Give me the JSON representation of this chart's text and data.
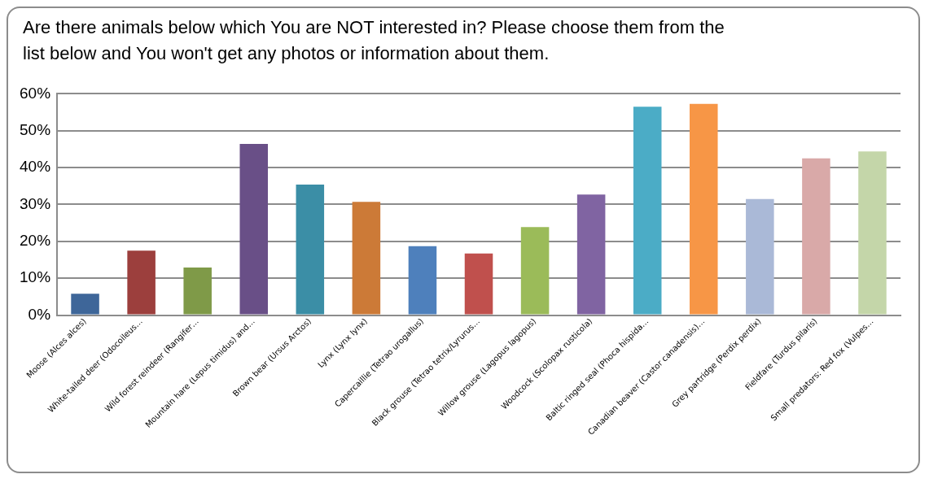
{
  "chart_data": {
    "type": "bar",
    "title": "Are there animals below which You are NOT interested in? Please choose them from the list below and You won't get any photos or information about them.",
    "categories": [
      "Moose (Alces alces)",
      "White-tailed deer (Odocoileus…",
      "Wild forest reindeer (Rangifer…",
      "Mountain hare (Lepus timidus) and…",
      "Brown bear (Ursus Arctos)",
      "Lynx (Lynx lynx)",
      "Capercaillie (Tetrao urogallus)",
      "Black grouse (Tetrao tetrix/Lyrurus…",
      "Willow grouse (Lagopus lagopus)",
      "Woodcock (Scolopax rusticola)",
      "Baltic ringed seal (Phoca hispida…",
      "Canadian beaver (Castor canadensis)…",
      "Grey partridge (Perdix perdix)",
      "Fieldfare (Turdus pilaris)",
      "Small predators: Red fox (Vulpes…"
    ],
    "values": [
      5.8,
      17.5,
      12.9,
      46.4,
      35.4,
      30.7,
      18.7,
      16.7,
      23.9,
      32.7,
      56.5,
      57.3,
      31.5,
      42.5,
      44.4
    ],
    "colors": [
      "#3e6699",
      "#9c3f3d",
      "#7f9a48",
      "#694f87",
      "#3b8ea6",
      "#cc7a37",
      "#4e80bc",
      "#c0504d",
      "#9bbb59",
      "#8064a2",
      "#4bacc6",
      "#f79646",
      "#aab9d7",
      "#d9a9a8",
      "#c4d6a9"
    ],
    "ylim": [
      0,
      60
    ],
    "yticks": [
      {
        "value": 0,
        "label": "0%"
      },
      {
        "value": 10,
        "label": "10%"
      },
      {
        "value": 20,
        "label": "20%"
      },
      {
        "value": 30,
        "label": "30%"
      },
      {
        "value": 40,
        "label": "40%"
      },
      {
        "value": 50,
        "label": "50%"
      },
      {
        "value": 60,
        "label": "60%"
      }
    ],
    "grid": "y",
    "legend": false
  }
}
